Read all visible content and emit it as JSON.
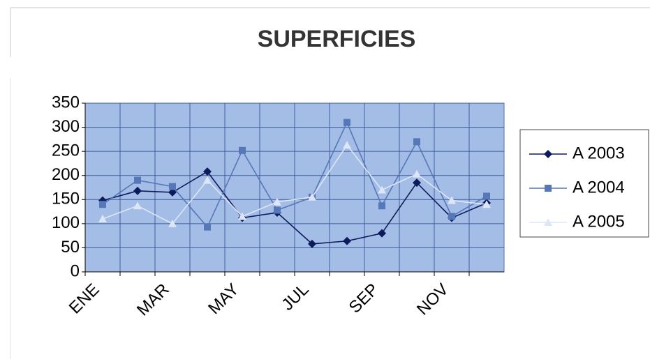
{
  "chart_data": {
    "type": "line",
    "title": "SUPERFICIES",
    "categories": [
      "ENE",
      null,
      "MAR",
      null,
      "MAY",
      null,
      "JUL",
      null,
      "SEP",
      null,
      "NOV",
      null
    ],
    "series": [
      {
        "name": "A 2003",
        "color": "#0d1a5c",
        "marker": "diamond",
        "values": [
          148,
          168,
          165,
          208,
          112,
          123,
          58,
          64,
          80,
          185,
          112,
          143
        ]
      },
      {
        "name": "A 2004",
        "color": "#5677b8",
        "marker": "square",
        "values": [
          140,
          190,
          177,
          93,
          252,
          128,
          155,
          310,
          137,
          270,
          115,
          157
        ]
      },
      {
        "name": "A 2005",
        "color": "#dde6f6",
        "marker": "triangle",
        "values": [
          110,
          137,
          100,
          190,
          115,
          145,
          155,
          263,
          170,
          203,
          148,
          140
        ]
      }
    ],
    "ylim": [
      0,
      350
    ],
    "yticks": [
      0,
      50,
      100,
      150,
      200,
      250,
      300,
      350
    ],
    "grid": true,
    "legend": "right"
  }
}
